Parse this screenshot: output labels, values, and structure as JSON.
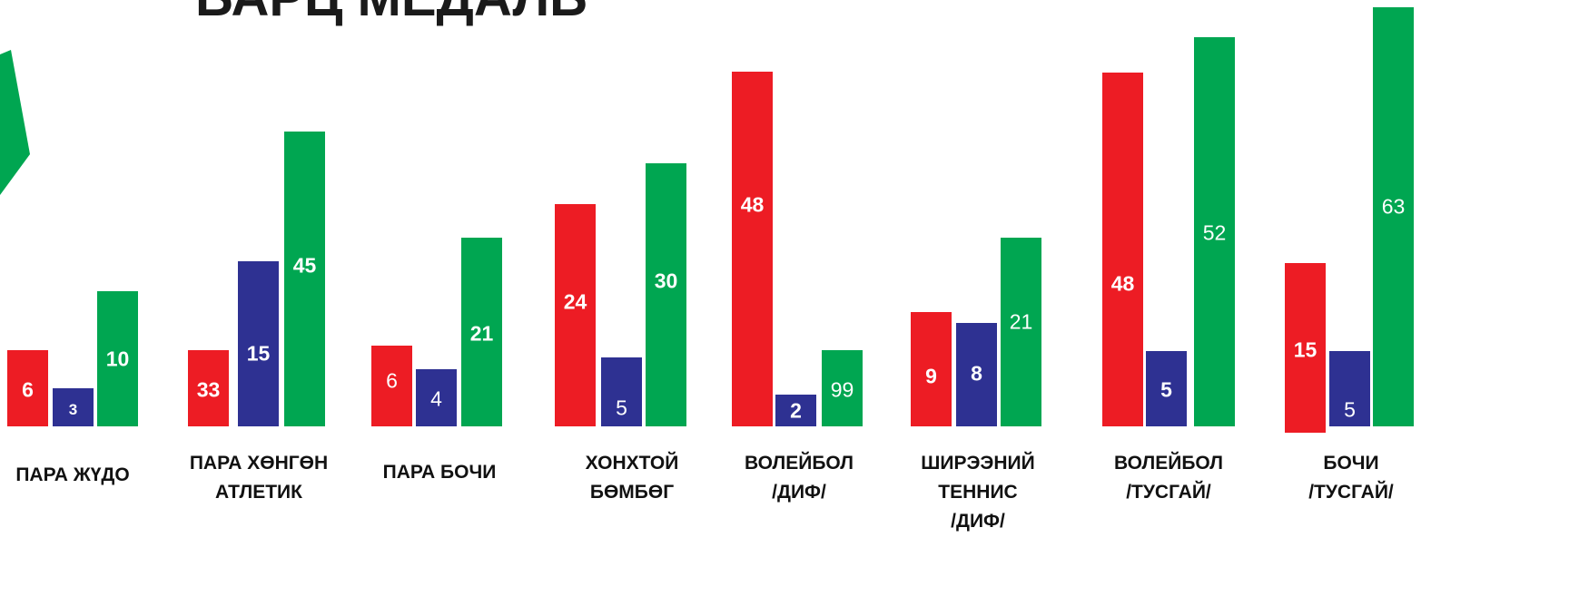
{
  "chart_data": {
    "type": "bar",
    "title": "БАРЦ МЕДАЛЬ",
    "categories": [
      "ПАРА ЖҮДО",
      "ПАРА ХӨНГӨН\nАТЛЕТИК",
      "ПАРА БОЧИ",
      "ХОНХТОЙ\nБӨМБӨГ",
      "ВОЛЕЙБОЛ\n/ДИФ/",
      "ШИРЭЭНИЙ\nТЕННИС\n/ДИФ/",
      "ВОЛЕЙБОЛ\n/ТУСГАЙ/",
      "БОЧИ\n/ТУСГАЙ/"
    ],
    "series": [
      {
        "color": "#ed1c24",
        "values": [
          6,
          33,
          6,
          24,
          48,
          9,
          48,
          15
        ]
      },
      {
        "color": "#2e3192",
        "values": [
          3,
          15,
          4,
          5,
          2,
          8,
          5,
          5
        ]
      },
      {
        "color": "#00a651",
        "values": [
          10,
          45,
          21,
          30,
          99,
          21,
          52,
          63
        ]
      }
    ]
  }
}
